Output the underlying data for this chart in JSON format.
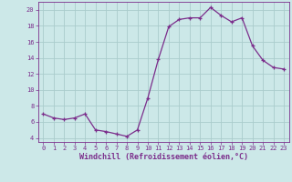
{
  "x": [
    0,
    1,
    2,
    3,
    4,
    5,
    6,
    7,
    8,
    9,
    10,
    11,
    12,
    13,
    14,
    15,
    16,
    17,
    18,
    19,
    20,
    21,
    22,
    23
  ],
  "y": [
    7.0,
    6.5,
    6.3,
    6.5,
    7.0,
    5.0,
    4.8,
    4.5,
    4.2,
    5.0,
    9.0,
    13.8,
    17.9,
    18.8,
    19.0,
    19.0,
    20.3,
    19.3,
    18.5,
    19.0,
    15.5,
    13.7,
    12.8,
    12.6
  ],
  "line_color": "#7b2d8b",
  "marker": "+",
  "marker_size": 3,
  "bg_color": "#cce8e8",
  "grid_color": "#aacccc",
  "xlabel": "Windchill (Refroidissement éolien,°C)",
  "ylim": [
    3.5,
    21.0
  ],
  "xlim": [
    -0.5,
    23.5
  ],
  "yticks": [
    4,
    6,
    8,
    10,
    12,
    14,
    16,
    18,
    20
  ],
  "xticks": [
    0,
    1,
    2,
    3,
    4,
    5,
    6,
    7,
    8,
    9,
    10,
    11,
    12,
    13,
    14,
    15,
    16,
    17,
    18,
    19,
    20,
    21,
    22,
    23
  ],
  "tick_color": "#7b2d8b",
  "tick_fontsize": 5.0,
  "xlabel_fontsize": 6.0,
  "spine_color": "#7b2d8b",
  "linewidth": 0.9,
  "markeredgewidth": 0.9
}
